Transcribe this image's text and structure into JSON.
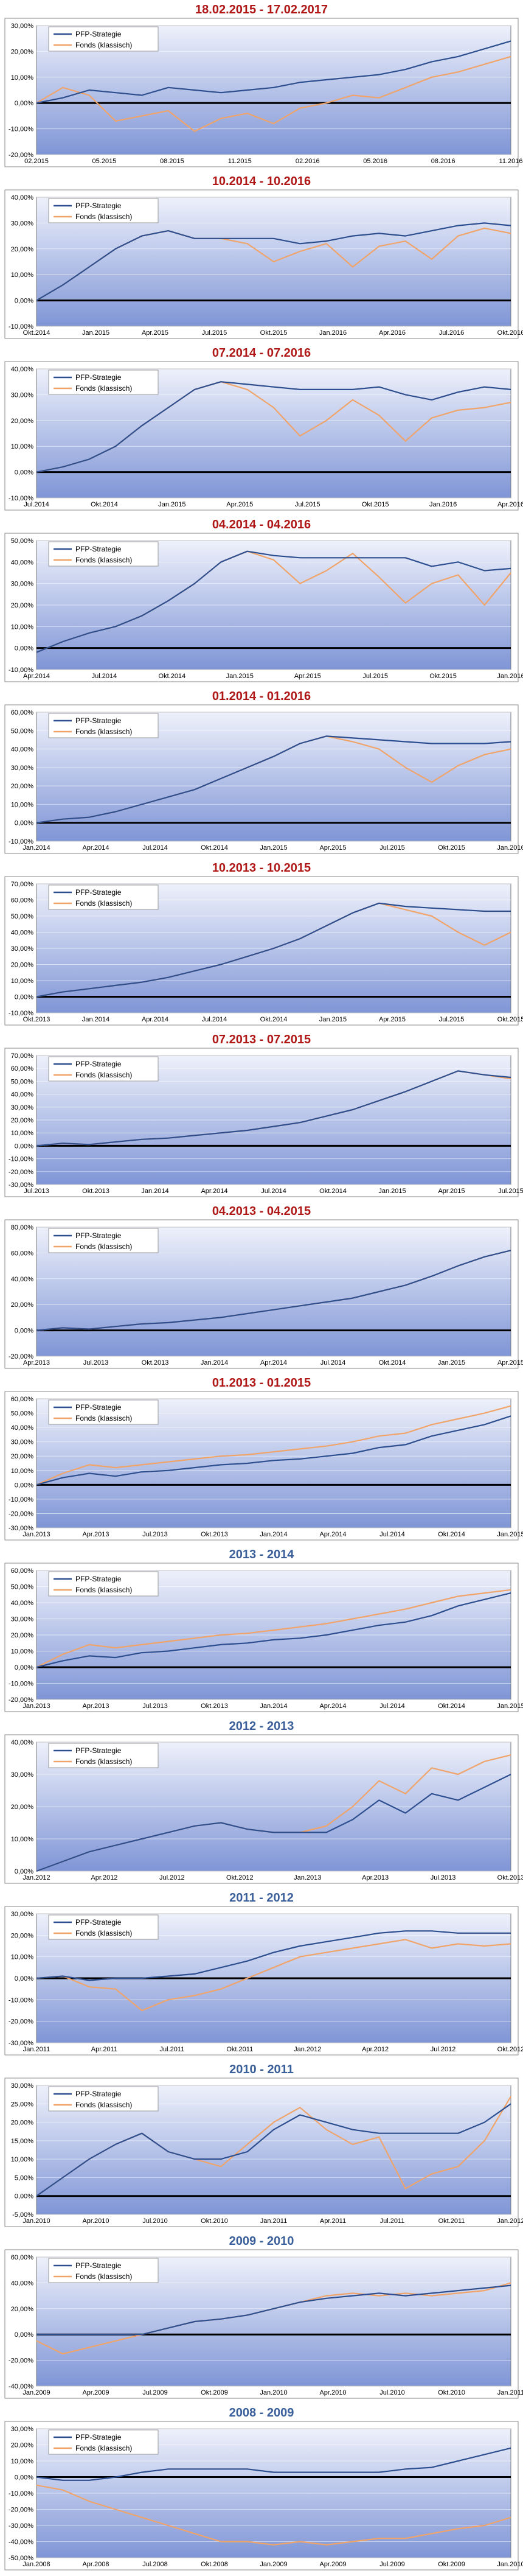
{
  "colors": {
    "pfp": "#2e4f8f",
    "fonds": "#f0a46a",
    "title_red": "#b01818",
    "title_blue": "#3a5f9a",
    "plot_top": "#eef1fb",
    "plot_bottom": "#7f95d6",
    "legend_bg": "#ffffff"
  },
  "legend": {
    "pfp_label": "PFP-Strategie",
    "fonds_label": "Fonds (klassisch)"
  },
  "chart_data": [
    {
      "type": "line",
      "title": "18.02.2015 - 17.02.2017",
      "title_color": "red",
      "y_ticks": [
        30,
        20,
        10,
        0,
        -10,
        -20
      ],
      "x_ticks": [
        "02.2015",
        "05.2015",
        "08.2015",
        "11.2015",
        "02.2016",
        "05.2016",
        "08.2016",
        "11.2016"
      ],
      "series": [
        {
          "name": "PFP-Strategie",
          "values": [
            0,
            2,
            5,
            4,
            3,
            6,
            5,
            4,
            5,
            6,
            8,
            9,
            10,
            11,
            13,
            16,
            18,
            21,
            24
          ]
        },
        {
          "name": "Fonds (klassisch)",
          "values": [
            0,
            6,
            3,
            -7,
            -5,
            -3,
            -11,
            -6,
            -4,
            -8,
            -2,
            0,
            3,
            2,
            6,
            10,
            12,
            15,
            18
          ]
        }
      ]
    },
    {
      "type": "line",
      "title": "10.2014 - 10.2016",
      "title_color": "red",
      "y_ticks": [
        40,
        30,
        20,
        10,
        0,
        -10
      ],
      "x_ticks": [
        "Okt.2014",
        "Jan.2015",
        "Apr.2015",
        "Jul.2015",
        "Okt.2015",
        "Jan.2016",
        "Apr.2016",
        "Jul.2016",
        "Okt.2016"
      ],
      "series": [
        {
          "name": "PFP-Strategie",
          "values": [
            0,
            6,
            13,
            20,
            25,
            27,
            24,
            24,
            24,
            24,
            22,
            23,
            25,
            26,
            25,
            27,
            29,
            30,
            29
          ]
        },
        {
          "name": "Fonds (klassisch)",
          "values": [
            0,
            6,
            13,
            20,
            25,
            27,
            24,
            24,
            22,
            15,
            19,
            22,
            13,
            21,
            23,
            16,
            25,
            28,
            26
          ]
        }
      ]
    },
    {
      "type": "line",
      "title": "07.2014 - 07.2016",
      "title_color": "red",
      "y_ticks": [
        40,
        30,
        20,
        10,
        0,
        -10
      ],
      "x_ticks": [
        "Jul.2014",
        "Okt.2014",
        "Jan.2015",
        "Apr.2015",
        "Jul.2015",
        "Okt.2015",
        "Jan.2016",
        "Apr.2016"
      ],
      "series": [
        {
          "name": "PFP-Strategie",
          "values": [
            0,
            2,
            5,
            10,
            18,
            25,
            32,
            35,
            34,
            33,
            32,
            32,
            32,
            33,
            30,
            28,
            31,
            33,
            32
          ]
        },
        {
          "name": "Fonds (klassisch)",
          "values": [
            0,
            2,
            5,
            10,
            18,
            25,
            32,
            35,
            32,
            25,
            14,
            20,
            28,
            22,
            12,
            21,
            24,
            25,
            27
          ]
        }
      ]
    },
    {
      "type": "line",
      "title": "04.2014 - 04.2016",
      "title_color": "red",
      "y_ticks": [
        50,
        40,
        30,
        20,
        10,
        0,
        -10
      ],
      "x_ticks": [
        "Apr.2014",
        "Jul.2014",
        "Okt.2014",
        "Jan.2015",
        "Apr.2015",
        "Jul.2015",
        "Okt.2015",
        "Jan.2016"
      ],
      "series": [
        {
          "name": "PFP-Strategie",
          "values": [
            -2,
            3,
            7,
            10,
            15,
            22,
            30,
            40,
            45,
            43,
            42,
            42,
            42,
            42,
            42,
            38,
            40,
            36,
            37
          ]
        },
        {
          "name": "Fonds (klassisch)",
          "values": [
            -2,
            3,
            7,
            10,
            15,
            22,
            30,
            40,
            45,
            41,
            30,
            36,
            44,
            33,
            21,
            30,
            34,
            20,
            35
          ]
        }
      ]
    },
    {
      "type": "line",
      "title": "01.2014 - 01.2016",
      "title_color": "red",
      "y_ticks": [
        60,
        50,
        40,
        30,
        20,
        10,
        0,
        -10
      ],
      "x_ticks": [
        "Jan.2014",
        "Apr.2014",
        "Jul.2014",
        "Okt.2014",
        "Jan.2015",
        "Apr.2015",
        "Jul.2015",
        "Okt.2015",
        "Jan.2016"
      ],
      "series": [
        {
          "name": "PFP-Strategie",
          "values": [
            0,
            2,
            3,
            6,
            10,
            14,
            18,
            24,
            30,
            36,
            43,
            47,
            46,
            45,
            44,
            43,
            43,
            43,
            44
          ]
        },
        {
          "name": "Fonds (klassisch)",
          "values": [
            0,
            2,
            3,
            6,
            10,
            14,
            18,
            24,
            30,
            36,
            43,
            47,
            44,
            40,
            30,
            22,
            31,
            37,
            40
          ]
        }
      ]
    },
    {
      "type": "line",
      "title": "10.2013 - 10.2015",
      "title_color": "red",
      "y_ticks": [
        70,
        60,
        50,
        40,
        30,
        20,
        10,
        0,
        -10
      ],
      "x_ticks": [
        "Okt.2013",
        "Jan.2014",
        "Apr.2014",
        "Jul.2014",
        "Okt.2014",
        "Jan.2015",
        "Apr.2015",
        "Jul.2015",
        "Okt.2015"
      ],
      "series": [
        {
          "name": "PFP-Strategie",
          "values": [
            0,
            3,
            5,
            7,
            9,
            12,
            16,
            20,
            25,
            30,
            36,
            44,
            52,
            58,
            56,
            55,
            54,
            53,
            53
          ]
        },
        {
          "name": "Fonds (klassisch)",
          "values": [
            0,
            3,
            5,
            7,
            9,
            12,
            16,
            20,
            25,
            30,
            36,
            44,
            52,
            58,
            54,
            50,
            40,
            32,
            40
          ]
        }
      ]
    },
    {
      "type": "line",
      "title": "07.2013 - 07.2015",
      "title_color": "red",
      "y_ticks": [
        70,
        60,
        50,
        40,
        30,
        20,
        10,
        0,
        -10,
        -20,
        -30
      ],
      "x_ticks": [
        "Jul.2013",
        "Okt.2013",
        "Jan.2014",
        "Apr.2014",
        "Jul.2014",
        "Okt.2014",
        "Jan.2015",
        "Apr.2015",
        "Jul.2015"
      ],
      "series": [
        {
          "name": "PFP-Strategie",
          "values": [
            0,
            2,
            1,
            3,
            5,
            6,
            8,
            10,
            12,
            15,
            18,
            23,
            28,
            35,
            42,
            50,
            58,
            55,
            53
          ]
        },
        {
          "name": "Fonds (klassisch)",
          "values": [
            0,
            2,
            1,
            3,
            5,
            6,
            8,
            10,
            12,
            15,
            18,
            23,
            28,
            35,
            42,
            50,
            58,
            55,
            52
          ]
        }
      ]
    },
    {
      "type": "line",
      "title": "04.2013 - 04.2015",
      "title_color": "red",
      "y_ticks": [
        80,
        60,
        40,
        20,
        0,
        -20
      ],
      "x_ticks": [
        "Apr.2013",
        "Jul.2013",
        "Okt.2013",
        "Jan.2014",
        "Apr.2014",
        "Jul.2014",
        "Okt.2014",
        "Jan.2015",
        "Apr.2015"
      ],
      "series": [
        {
          "name": "PFP-Strategie",
          "values": [
            0,
            2,
            1,
            3,
            5,
            6,
            8,
            10,
            13,
            16,
            19,
            22,
            25,
            30,
            35,
            42,
            50,
            57,
            62
          ]
        },
        {
          "name": "Fonds (klassisch)",
          "values": [
            0,
            2,
            1,
            3,
            5,
            6,
            8,
            10,
            13,
            16,
            19,
            22,
            25,
            30,
            35,
            42,
            50,
            57,
            62
          ]
        }
      ]
    },
    {
      "type": "line",
      "title": "01.2013 - 01.2015",
      "title_color": "red",
      "y_ticks": [
        60,
        50,
        40,
        30,
        20,
        10,
        0,
        -10,
        -20,
        -30
      ],
      "x_ticks": [
        "Jan.2013",
        "Apr.2013",
        "Jul.2013",
        "Okt.2013",
        "Jan.2014",
        "Apr.2014",
        "Jul.2014",
        "Okt.2014",
        "Jan.2015"
      ],
      "series": [
        {
          "name": "PFP-Strategie",
          "values": [
            0,
            5,
            8,
            6,
            9,
            10,
            12,
            14,
            15,
            17,
            18,
            20,
            22,
            26,
            28,
            34,
            38,
            42,
            48
          ]
        },
        {
          "name": "Fonds (klassisch)",
          "values": [
            0,
            8,
            14,
            12,
            14,
            16,
            18,
            20,
            21,
            23,
            25,
            27,
            30,
            34,
            36,
            42,
            46,
            50,
            55
          ]
        }
      ]
    },
    {
      "type": "line",
      "title": "2013 - 2014",
      "title_color": "blue",
      "y_ticks": [
        60,
        50,
        40,
        30,
        20,
        10,
        0,
        -10,
        -20
      ],
      "x_ticks": [
        "Jan.2013",
        "Apr.2013",
        "Jul.2013",
        "Okt.2013",
        "Jan.2014",
        "Apr.2014",
        "Jul.2014",
        "Okt.2014",
        "Jan.2015"
      ],
      "series": [
        {
          "name": "PFP-Strategie",
          "values": [
            0,
            4,
            7,
            6,
            9,
            10,
            12,
            14,
            15,
            17,
            18,
            20,
            23,
            26,
            28,
            32,
            38,
            42,
            46
          ]
        },
        {
          "name": "Fonds (klassisch)",
          "values": [
            0,
            8,
            14,
            12,
            14,
            16,
            18,
            20,
            21,
            23,
            25,
            27,
            30,
            33,
            36,
            40,
            44,
            46,
            48
          ]
        }
      ]
    },
    {
      "type": "line",
      "title": "2012 - 2013",
      "title_color": "blue",
      "y_ticks": [
        40,
        30,
        20,
        10,
        0
      ],
      "x_ticks": [
        "Jan.2012",
        "Apr.2012",
        "Jul.2012",
        "Okt.2012",
        "Jan.2013",
        "Apr.2013",
        "Jul.2013",
        "Okt.2013"
      ],
      "series": [
        {
          "name": "PFP-Strategie",
          "values": [
            0,
            3,
            6,
            8,
            10,
            12,
            14,
            15,
            13,
            12,
            12,
            12,
            16,
            22,
            18,
            24,
            22,
            26,
            30
          ]
        },
        {
          "name": "Fonds (klassisch)",
          "values": [
            0,
            3,
            6,
            8,
            10,
            12,
            14,
            15,
            13,
            12,
            12,
            14,
            20,
            28,
            24,
            32,
            30,
            34,
            36
          ]
        }
      ]
    },
    {
      "type": "line",
      "title": "2011 - 2012",
      "title_color": "blue",
      "y_ticks": [
        30,
        20,
        10,
        0,
        -10,
        -20,
        -30
      ],
      "x_ticks": [
        "Jan.2011",
        "Apr.2011",
        "Jul.2011",
        "Okt.2011",
        "Jan.2012",
        "Apr.2012",
        "Jul.2012",
        "Okt.2012"
      ],
      "series": [
        {
          "name": "PFP-Strategie",
          "values": [
            0,
            1,
            -1,
            0,
            0,
            1,
            2,
            5,
            8,
            12,
            15,
            17,
            19,
            21,
            22,
            22,
            21,
            21,
            21
          ]
        },
        {
          "name": "Fonds (klassisch)",
          "values": [
            0,
            1,
            -4,
            -5,
            -15,
            -10,
            -8,
            -5,
            0,
            5,
            10,
            12,
            14,
            16,
            18,
            14,
            16,
            15,
            16
          ]
        }
      ]
    },
    {
      "type": "line",
      "title": "2010 - 2011",
      "title_color": "blue",
      "y_ticks": [
        30,
        25,
        20,
        15,
        10,
        5,
        0,
        -5
      ],
      "x_ticks": [
        "Jan.2010",
        "Apr.2010",
        "Jul.2010",
        "Okt.2010",
        "Jan.2011",
        "Apr.2011",
        "Jul.2011",
        "Okt.2011",
        "Jan.2012"
      ],
      "series": [
        {
          "name": "PFP-Strategie",
          "values": [
            0,
            5,
            10,
            14,
            17,
            12,
            10,
            10,
            12,
            18,
            22,
            20,
            18,
            17,
            17,
            17,
            17,
            20,
            25
          ]
        },
        {
          "name": "Fonds (klassisch)",
          "values": [
            0,
            5,
            10,
            14,
            17,
            12,
            10,
            8,
            14,
            20,
            24,
            18,
            14,
            16,
            2,
            6,
            8,
            15,
            27
          ]
        }
      ]
    },
    {
      "type": "line",
      "title": "2009 - 2010",
      "title_color": "blue",
      "y_ticks": [
        60,
        40,
        20,
        0,
        -20,
        -40
      ],
      "x_ticks": [
        "Jan.2009",
        "Apr.2009",
        "Jul.2009",
        "Okt.2009",
        "Jan.2010",
        "Apr.2010",
        "Jul.2010",
        "Okt.2010",
        "Jan.2011"
      ],
      "series": [
        {
          "name": "PFP-Strategie",
          "values": [
            0,
            0,
            0,
            0,
            0,
            5,
            10,
            12,
            15,
            20,
            25,
            28,
            30,
            32,
            30,
            32,
            34,
            36,
            38
          ]
        },
        {
          "name": "Fonds (klassisch)",
          "values": [
            -5,
            -15,
            -10,
            -5,
            0,
            5,
            10,
            12,
            15,
            20,
            25,
            30,
            32,
            30,
            32,
            30,
            32,
            34,
            40
          ]
        }
      ]
    },
    {
      "type": "line",
      "title": "2008 - 2009",
      "title_color": "blue",
      "y_ticks": [
        30,
        20,
        10,
        0,
        -10,
        -20,
        -30,
        -40,
        -50
      ],
      "x_ticks": [
        "Jan.2008",
        "Apr.2008",
        "Jul.2008",
        "Okt.2008",
        "Jan.2009",
        "Apr.2009",
        "Jul.2009",
        "Okt.2009",
        "Jan.2010"
      ],
      "series": [
        {
          "name": "PFP-Strategie",
          "values": [
            0,
            -2,
            -2,
            0,
            3,
            5,
            5,
            5,
            5,
            3,
            3,
            3,
            3,
            3,
            5,
            6,
            10,
            14,
            18
          ]
        },
        {
          "name": "Fonds (klassisch)",
          "values": [
            -5,
            -8,
            -15,
            -20,
            -25,
            -30,
            -35,
            -40,
            -40,
            -42,
            -40,
            -42,
            -40,
            -38,
            -38,
            -35,
            -32,
            -30,
            -25
          ]
        }
      ]
    }
  ]
}
